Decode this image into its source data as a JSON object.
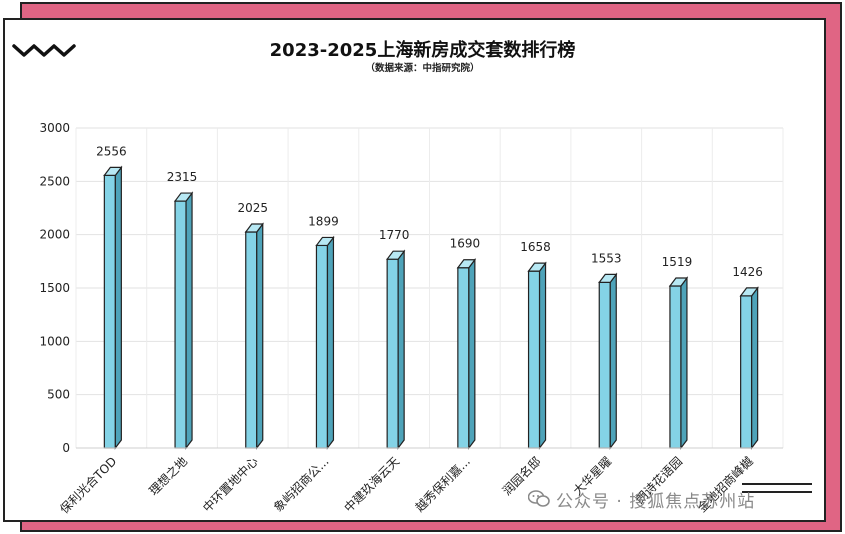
{
  "title": "2023-2025上海新房成交套数排行榜",
  "subtitle": "（数据来源：中指研究院）",
  "watermark": "公众号 · 搜狐焦点苏州站",
  "colors": {
    "bar_front": "#84d3e6",
    "bar_side": "#4ea3b9",
    "bar_top": "#b7e8f3",
    "accent": "#e06584"
  },
  "chart_data": {
    "type": "bar",
    "title": "2023-2025上海新房成交套数排行榜",
    "xlabel": "",
    "ylabel": "",
    "ylim": [
      0,
      3000
    ],
    "yticks": [
      0,
      500,
      1000,
      1500,
      2000,
      2500,
      3000
    ],
    "grid": true,
    "categories": [
      "保利光合TOD",
      "理想之地",
      "中环置地中心",
      "象屿招商公...",
      "中建玖海云天",
      "越秀保利嘉...",
      "润园名邸",
      "大华星曜",
      "朗诗花语园",
      "金地招商峰樾"
    ],
    "values": [
      2556,
      2315,
      2025,
      1899,
      1770,
      1690,
      1658,
      1553,
      1519,
      1426
    ]
  }
}
